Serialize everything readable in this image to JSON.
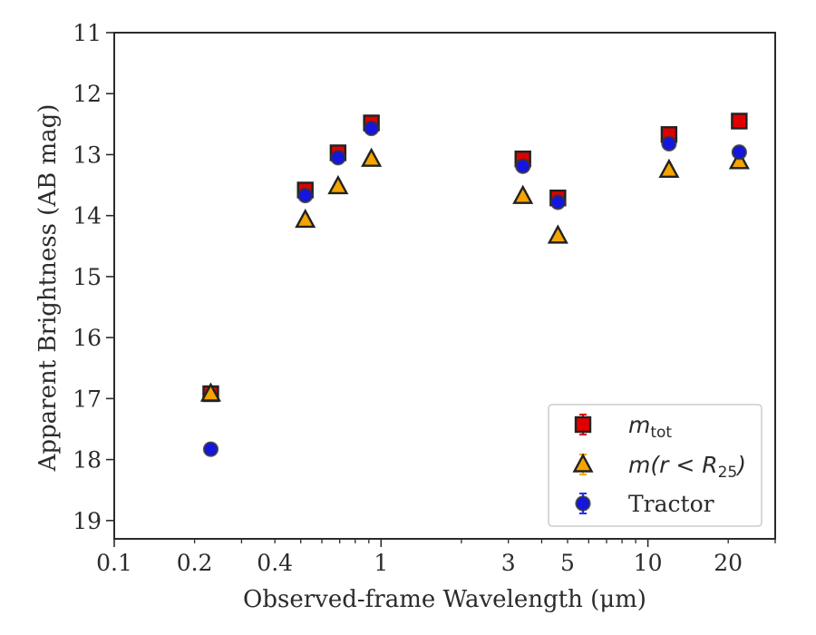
{
  "chart_data": {
    "type": "scatter",
    "title": "",
    "xlabel": "Observed-frame Wavelength (μm)",
    "ylabel": "Apparent Brightness (AB mag)",
    "xscale": "log",
    "xlim": [
      0.1,
      30
    ],
    "ylim": [
      19.3,
      11
    ],
    "y_inverted": true,
    "grid": false,
    "legend_position": "lower right",
    "x_ticks": [
      {
        "value": 0.1,
        "label": "0.1"
      },
      {
        "value": 0.2,
        "label": "0.2"
      },
      {
        "value": 0.4,
        "label": "0.4"
      },
      {
        "value": 1,
        "label": "1"
      },
      {
        "value": 3,
        "label": "3"
      },
      {
        "value": 5,
        "label": "5"
      },
      {
        "value": 10,
        "label": "10"
      },
      {
        "value": 20,
        "label": "20"
      }
    ],
    "y_ticks": [
      {
        "value": 11,
        "label": "11"
      },
      {
        "value": 12,
        "label": "12"
      },
      {
        "value": 13,
        "label": "13"
      },
      {
        "value": 14,
        "label": "14"
      },
      {
        "value": 15,
        "label": "15"
      },
      {
        "value": 16,
        "label": "16"
      },
      {
        "value": 17,
        "label": "17"
      },
      {
        "value": 18,
        "label": "18"
      },
      {
        "value": 19,
        "label": "19"
      }
    ],
    "series": [
      {
        "name": "m_tot",
        "marker": "square",
        "color": "#e00000",
        "errorbar_color": "#e00000",
        "x": [
          0.23,
          0.52,
          0.69,
          0.92,
          3.4,
          4.6,
          12.0,
          22.0
        ],
        "y": [
          16.92,
          13.58,
          12.97,
          12.48,
          13.07,
          13.71,
          12.67,
          12.45
        ]
      },
      {
        "name": "m(r < R25)",
        "marker": "triangle",
        "color": "#f5a400",
        "errorbar_color": "#f0a800",
        "x": [
          0.23,
          0.52,
          0.69,
          0.92,
          3.4,
          4.6,
          12.0,
          22.0
        ],
        "y": [
          16.92,
          14.07,
          13.52,
          13.07,
          13.68,
          14.33,
          13.25,
          13.11
        ]
      },
      {
        "name": "Tractor",
        "marker": "circle",
        "color": "#1515e0",
        "errorbar_color": "#2a2aff",
        "x": [
          0.23,
          0.52,
          0.69,
          0.92,
          3.4,
          4.6,
          12.0,
          22.0
        ],
        "y": [
          17.83,
          13.67,
          13.05,
          12.57,
          13.19,
          13.78,
          12.82,
          12.96
        ]
      }
    ],
    "legend": [
      {
        "main": "m",
        "sub": "tot",
        "marker": "square",
        "color": "#e00000",
        "errorbar_color": "#e00000"
      },
      {
        "main": "m(r < R",
        "sub": "25",
        "tail": ")",
        "marker": "triangle",
        "color": "#f5a400",
        "errorbar_color": "#f0a800"
      },
      {
        "main": "Tractor",
        "marker": "circle",
        "color": "#1515e0",
        "errorbar_color": "#2a2aff"
      }
    ]
  }
}
